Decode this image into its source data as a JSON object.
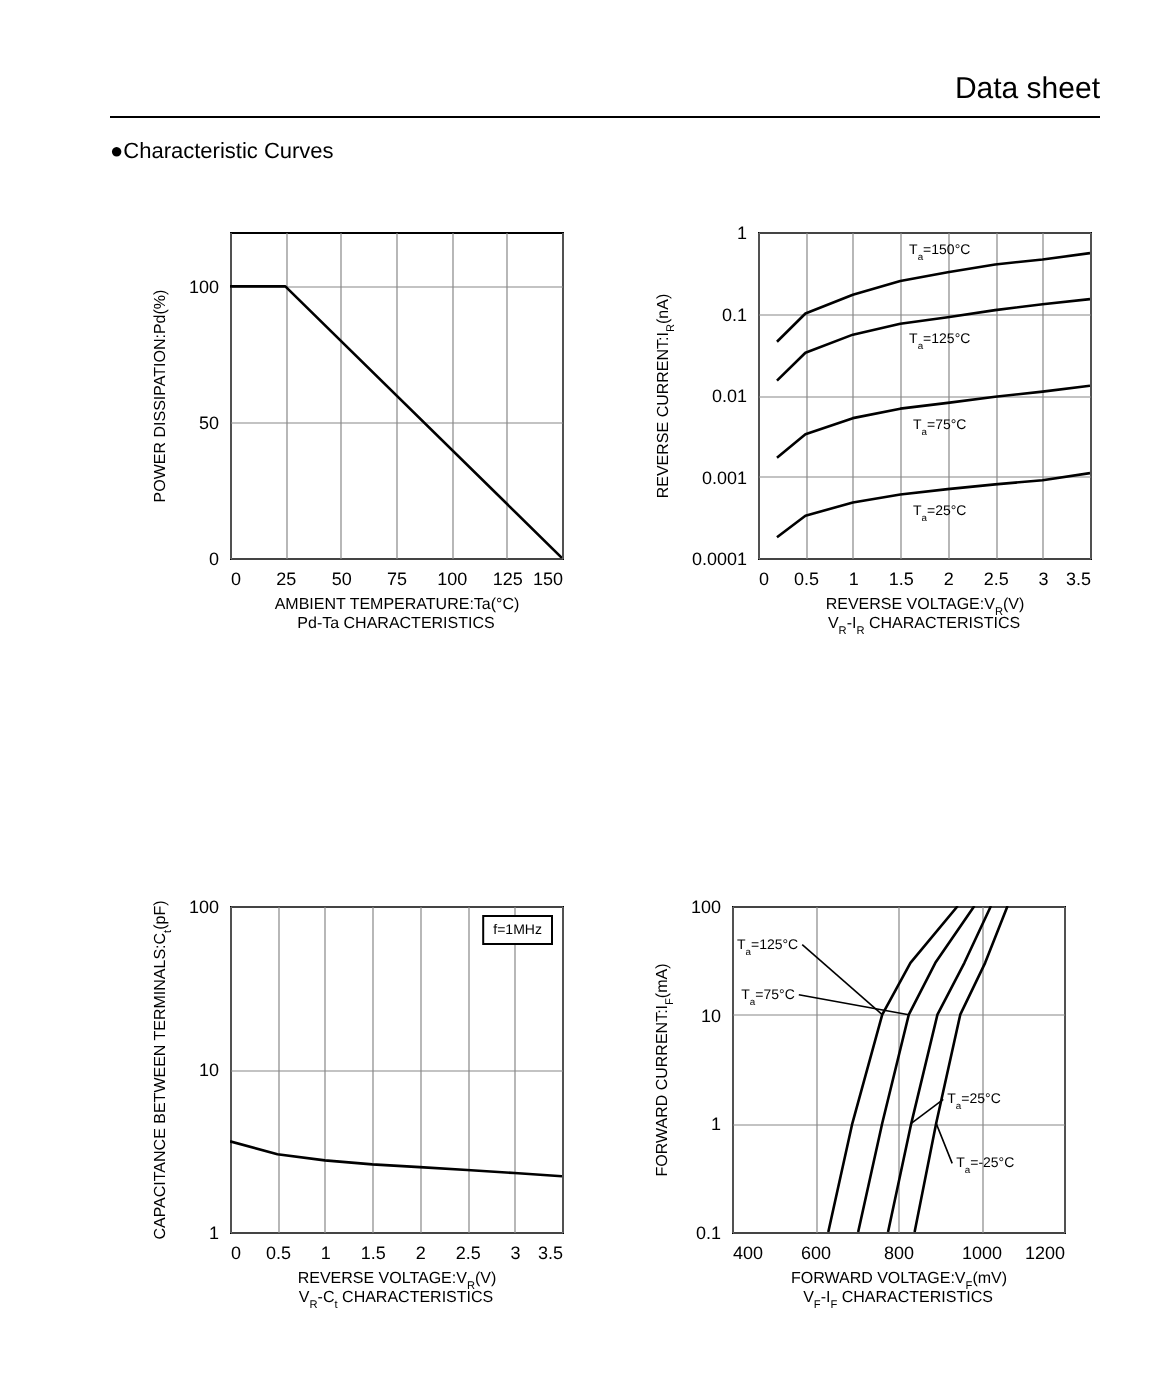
{
  "chart_data": [
    {
      "type": "line",
      "title": "Pd-Ta CHARACTERISTICS",
      "xlabel": "AMBIENT TEMPERATURE:Ta(°C)",
      "ylabel": "POWER DISSIPATION:Pd(%)",
      "annotations": [
        "Data sheet",
        "●Characteristic Curves"
      ],
      "series": [
        {
          "color": "#000000",
          "x": [
            0,
            25,
            150
          ],
          "values": [
            100,
            100,
            0
          ]
        }
      ],
      "xlim": [
        0,
        150
      ],
      "xticks": [
        0,
        25,
        50,
        75,
        100,
        125,
        150
      ],
      "ylim": [
        0,
        120
      ],
      "yticks": [
        0,
        50,
        100
      ],
      "grid": true
    },
    {
      "type": "line",
      "title": "V$_{R}$-I$_{R}$ CHARACTERISTICS",
      "xlabel": "REVERSE VOLTAGE:V$_{R}$(V)",
      "ylabel": "REVERSE CURRENT:I$_{R}$(nA)",
      "log": "y",
      "series": [
        {
          "name": "T$_{a}$=150°C",
          "color": "#000000",
          "x": [
            0.2,
            0.5,
            1,
            1.5,
            2,
            2.5,
            3,
            3.5
          ],
          "values": [
            0.045,
            0.1,
            0.17,
            0.25,
            0.32,
            0.4,
            0.46,
            0.55
          ]
        },
        {
          "name": "T$_{a}$=125°C",
          "color": "#000000",
          "x": [
            0.2,
            0.5,
            1,
            1.5,
            2,
            2.5,
            3,
            3.5
          ],
          "values": [
            0.015,
            0.033,
            0.055,
            0.075,
            0.09,
            0.11,
            0.13,
            0.15
          ]
        },
        {
          "name": "T$_{a}$=75°C",
          "color": "#000000",
          "x": [
            0.2,
            0.5,
            1,
            1.5,
            2,
            2.5,
            3,
            3.5
          ],
          "values": [
            0.0017,
            0.0033,
            0.0052,
            0.0068,
            0.008,
            0.0095,
            0.011,
            0.013
          ]
        },
        {
          "name": "T$_{a}$=25°C",
          "color": "#000000",
          "x": [
            0.2,
            0.5,
            1,
            1.5,
            2,
            2.5,
            3,
            3.5
          ],
          "values": [
            0.00018,
            0.00033,
            0.00048,
            0.0006,
            0.0007,
            0.0008,
            0.0009,
            0.0011
          ]
        }
      ],
      "xlim": [
        0,
        3.5
      ],
      "xticks": [
        0,
        0.5,
        1,
        1.5,
        2,
        2.5,
        3,
        3.5
      ],
      "ylim": [
        0.0001,
        1
      ],
      "yticks": [
        0.0001,
        0.001,
        0.01,
        0.1,
        1
      ],
      "grid": true
    },
    {
      "type": "line",
      "title": "V$_{R}$-C$_{t}$ CHARACTERISTICS",
      "xlabel": "REVERSE VOLTAGE:V$_{R}$(V)",
      "ylabel": "CAPACITANCE BETWEEN\nTERMINALS:C$_{t}$(pF)",
      "log": "y",
      "annotations": [
        "f=1MHz"
      ],
      "series": [
        {
          "color": "#000000",
          "x": [
            0,
            0.5,
            1,
            1.5,
            2,
            2.5,
            3,
            3.5
          ],
          "values": [
            3.6,
            3.0,
            2.75,
            2.6,
            2.5,
            2.4,
            2.3,
            2.2
          ]
        }
      ],
      "xlim": [
        0,
        3.5
      ],
      "xticks": [
        0,
        0.5,
        1,
        1.5,
        2,
        2.5,
        3,
        3.5
      ],
      "ylim": [
        1,
        100
      ],
      "yticks": [
        1,
        10,
        100
      ],
      "grid": true
    },
    {
      "type": "line",
      "title": "V$_{F}$-I$_{F}$ CHARACTERISTICS",
      "xlabel": "FORWARD VOLTAGE:V$_{F}$(mV)",
      "ylabel": "FORWARD CURRENT:I$_{F}$(mA)",
      "log": "y",
      "series": [
        {
          "name": "T$_{a}$=125°C",
          "color": "#000000",
          "x": [
            632,
            690,
            762,
            830,
            944
          ],
          "values": [
            0.1,
            1,
            10,
            30,
            100
          ]
        },
        {
          "name": "T$_{a}$=75°C",
          "color": "#000000",
          "x": [
            704,
            762,
            826,
            890,
            984
          ],
          "values": [
            0.1,
            1,
            10,
            30,
            100
          ]
        },
        {
          "name": "T$_{a}$=25°C",
          "color": "#000000",
          "x": [
            776,
            832,
            895,
            960,
            1024
          ],
          "values": [
            0.1,
            1,
            10,
            30,
            100
          ]
        },
        {
          "name": "T$_{a}$=-25°C",
          "color": "#000000",
          "x": [
            840,
            892,
            950,
            1010,
            1064
          ],
          "values": [
            0.1,
            1,
            10,
            30,
            100
          ]
        }
      ],
      "xlim": [
        400,
        1200
      ],
      "xticks": [
        400,
        600,
        800,
        1000,
        1200
      ],
      "ylim": [
        0.1,
        100
      ],
      "yticks": [
        0.1,
        1,
        10,
        100
      ],
      "grid": true
    }
  ]
}
